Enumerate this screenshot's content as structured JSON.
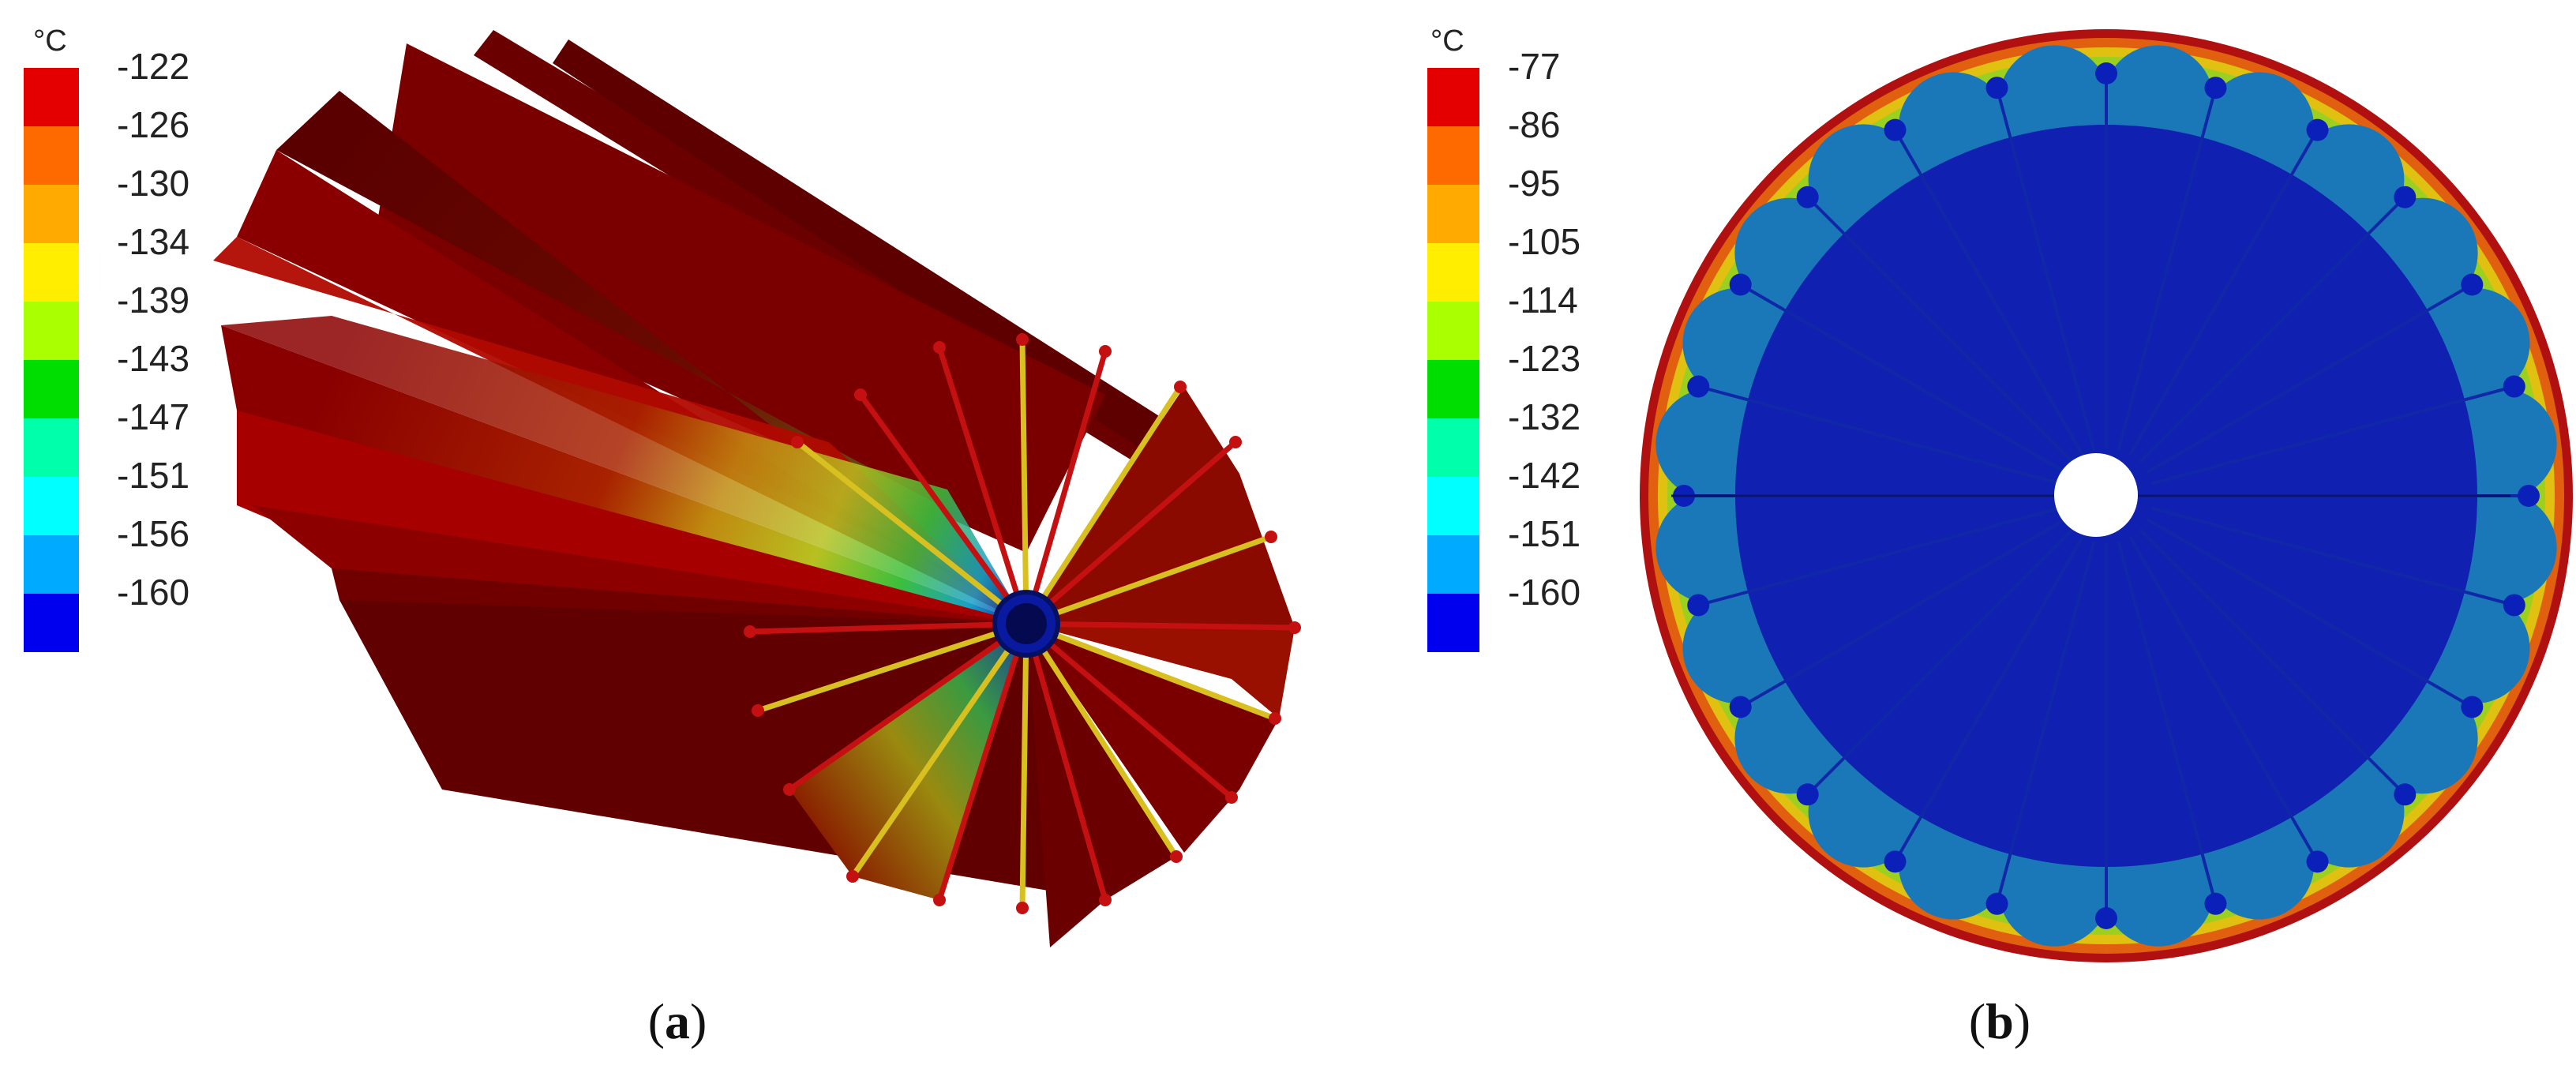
{
  "panel_a": {
    "caption": "(a)",
    "caption_letter": "a",
    "legend": {
      "unit": "°C",
      "labels": [
        "-122",
        "-126",
        "-130",
        "-134",
        "-139",
        "-143",
        "-147",
        "-151",
        "-156",
        "-160"
      ],
      "colors": [
        "#e50000",
        "#ff6a00",
        "#ffaa00",
        "#ffee00",
        "#aaff00",
        "#00dd00",
        "#00ffaa",
        "#00ffff",
        "#00aaff",
        "#0000ee"
      ]
    }
  },
  "panel_b": {
    "caption": "(b)",
    "caption_letter": "b",
    "legend": {
      "unit": "°C",
      "labels": [
        "-77",
        "-86",
        "-95",
        "-105",
        "-114",
        "-123",
        "-132",
        "-142",
        "-151",
        "-160"
      ],
      "colors": [
        "#e50000",
        "#ff6a00",
        "#ffaa00",
        "#ffee00",
        "#aaff00",
        "#00dd00",
        "#00ffaa",
        "#00ffff",
        "#00aaff",
        "#0000ee"
      ]
    }
  },
  "colors": {
    "fin_dark": "#7a0000",
    "fin_red": "#a80000",
    "fin_edge": "#c41010",
    "core_blue": "#0a1a9a",
    "shell_red": "#b01010"
  }
}
